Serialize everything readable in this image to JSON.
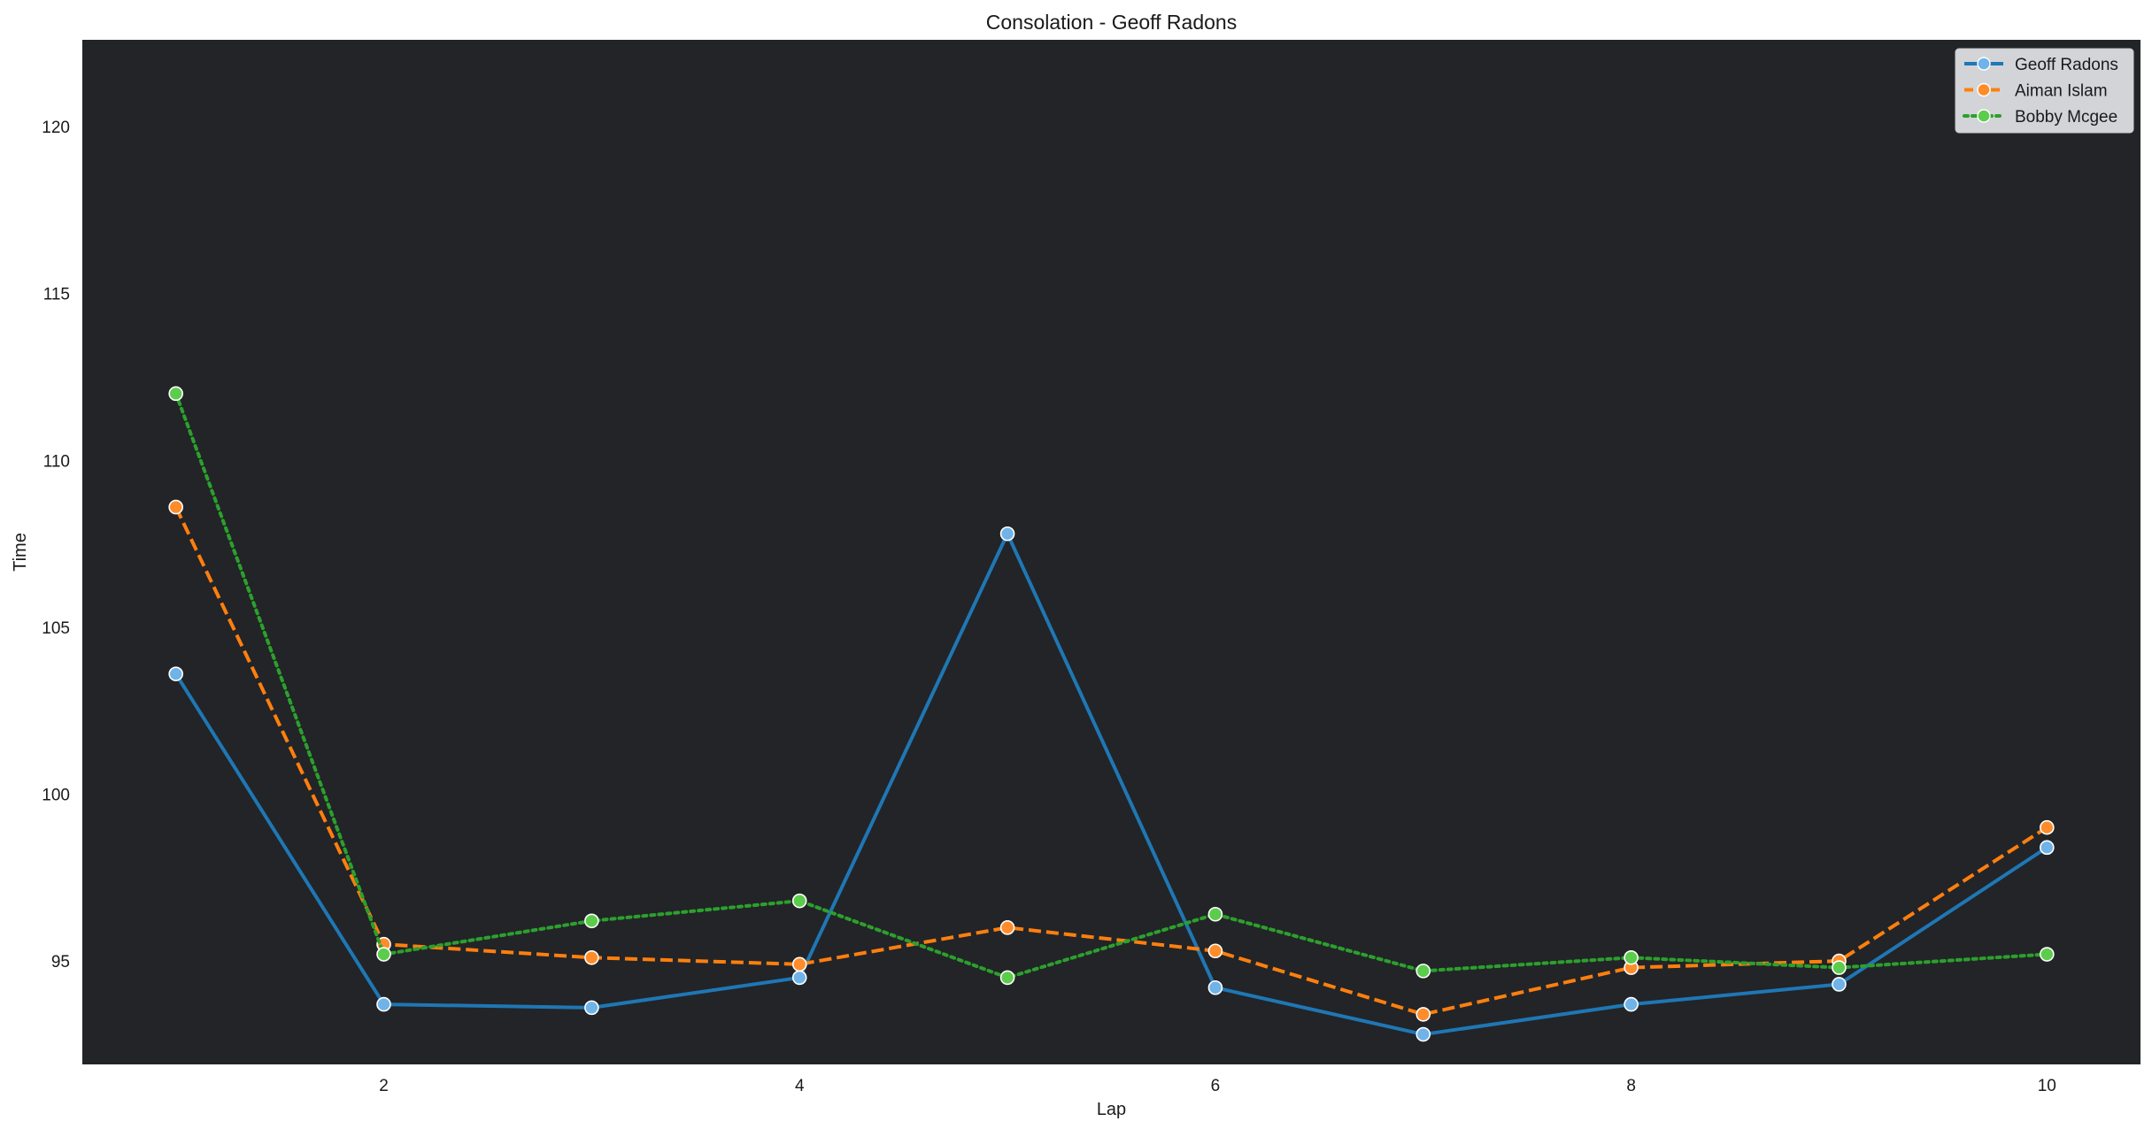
{
  "chart_data": {
    "type": "line",
    "title": "Consolation - Geoff Radons",
    "xlabel": "Lap",
    "ylabel": "Time",
    "x": [
      1,
      2,
      3,
      4,
      5,
      6,
      7,
      8,
      9,
      10
    ],
    "xlim": [
      0.55,
      10.45
    ],
    "ylim": [
      91.9,
      122.6
    ],
    "xticks": [
      2,
      4,
      6,
      8,
      10
    ],
    "yticks": [
      95,
      100,
      105,
      110,
      115,
      120
    ],
    "background": "#222428",
    "grid": false,
    "legend_position": "top-right",
    "series": [
      {
        "name": "Geoff Radons",
        "color": "#1f77b4",
        "marker_fill": "#6fb3e8",
        "dash": "solid",
        "values": [
          103.6,
          93.7,
          93.6,
          94.5,
          107.8,
          94.2,
          92.8,
          93.7,
          94.3,
          98.4
        ]
      },
      {
        "name": "Aiman Islam",
        "color": "#ff7f0e",
        "marker_fill": "#ff8c2a",
        "dash": "dashed",
        "values": [
          108.6,
          95.5,
          95.1,
          94.9,
          96.0,
          95.3,
          93.4,
          94.8,
          95.0,
          99.0
        ]
      },
      {
        "name": "Bobby Mcgee",
        "color": "#2ca02c",
        "marker_fill": "#5ccc4c",
        "dash": "dotted",
        "values": [
          112.0,
          95.2,
          96.2,
          96.8,
          94.5,
          96.4,
          94.7,
          95.1,
          94.8,
          95.2
        ]
      }
    ]
  }
}
